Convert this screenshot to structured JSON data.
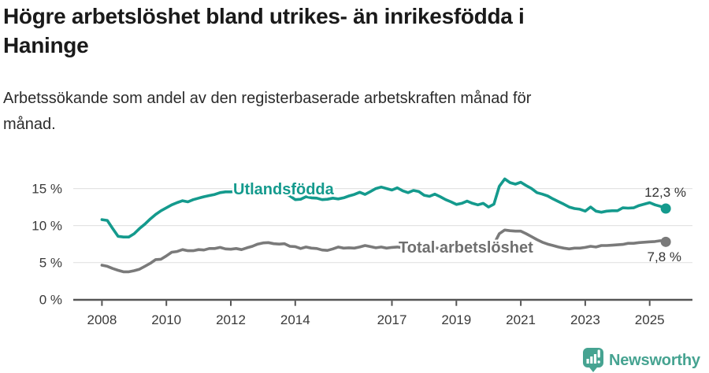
{
  "header": {
    "title": "Högre arbetslöshet bland utrikes- än inrikesfödda i\nHaninge",
    "subtitle": "Arbetssökande som andel av den registerbaserade arbetskraften månad för\nmånad."
  },
  "footer": {
    "brand": "Newsworthy"
  },
  "colors": {
    "teal": "#149a8d",
    "gray": "#7a7a7a",
    "gray_label": "#6f6f6f",
    "value_label": "#333333",
    "grid": "#e3e3e3",
    "axis": "#555555",
    "tick_label": "#3a3a3a",
    "logo": "#46a391",
    "background": "#ffffff"
  },
  "chart_data": {
    "type": "line",
    "title": "Högre arbetslöshet bland utrikes- än inrikesfödda i Haninge",
    "subtitle": "Arbetssökande som andel av den registerbaserade arbetskraften månad för månad.",
    "grid": "horizontal",
    "legend_position": "inline-labels",
    "x_axis": {
      "range": [
        2008.0,
        2025.5
      ],
      "ticks": [
        2008,
        2010,
        2012,
        2014,
        2017,
        2019,
        2021,
        2023,
        2025
      ],
      "tick_labels": [
        "2008",
        "2010",
        "2012",
        "2014",
        "2017",
        "2019",
        "2021",
        "2023",
        "2025"
      ]
    },
    "y_axis": {
      "unit": "%",
      "range": [
        0,
        17
      ],
      "ticks": [
        0,
        5,
        10,
        15
      ],
      "tick_labels": [
        "0 %",
        "5 %",
        "10 %",
        "15 %"
      ]
    },
    "x_start": 2008.0,
    "x_step": 0.166667,
    "sampling": "monthly share of workforce, values listed every second month",
    "series": [
      {
        "name": "Utlandsfödda",
        "color": "#149a8d",
        "end_label": "12,3 %",
        "end_value": 12.3,
        "values": [
          10.8,
          10.7,
          9.6,
          8.55,
          8.45,
          8.45,
          8.9,
          9.6,
          10.2,
          10.9,
          11.5,
          12.0,
          12.4,
          12.8,
          13.1,
          13.35,
          13.2,
          13.5,
          13.7,
          13.9,
          14.05,
          14.2,
          14.45,
          14.55,
          14.55,
          14.65,
          14.35,
          14.5,
          14.55,
          14.7,
          14.6,
          14.65,
          14.6,
          14.4,
          14.3,
          14.0,
          13.5,
          13.55,
          13.9,
          13.75,
          13.7,
          13.5,
          13.55,
          13.7,
          13.6,
          13.75,
          14.0,
          14.2,
          14.5,
          14.2,
          14.6,
          15.0,
          15.2,
          15.0,
          14.8,
          15.1,
          14.7,
          14.45,
          14.75,
          14.6,
          14.1,
          13.95,
          14.25,
          13.9,
          13.5,
          13.2,
          12.85,
          13.0,
          13.3,
          13.0,
          12.8,
          13.0,
          12.5,
          12.9,
          15.3,
          16.3,
          15.8,
          15.6,
          15.85,
          15.4,
          15.0,
          14.45,
          14.25,
          14.0,
          13.6,
          13.25,
          12.9,
          12.5,
          12.3,
          12.2,
          11.95,
          12.5,
          11.95,
          11.8,
          11.95,
          12.0,
          12.0,
          12.4,
          12.35,
          12.4,
          12.7,
          12.9,
          13.1,
          12.8,
          12.6,
          12.3
        ]
      },
      {
        "name": "Total arbetslöshet",
        "color": "#7a7a7a",
        "end_label": "7,8 %",
        "end_value": 7.8,
        "values": [
          4.65,
          4.5,
          4.2,
          3.95,
          3.75,
          3.75,
          3.9,
          4.1,
          4.5,
          4.9,
          5.4,
          5.45,
          5.9,
          6.4,
          6.5,
          6.75,
          6.6,
          6.6,
          6.75,
          6.7,
          6.9,
          6.9,
          7.05,
          6.85,
          6.8,
          6.9,
          6.75,
          7.0,
          7.2,
          7.5,
          7.65,
          7.7,
          7.55,
          7.5,
          7.55,
          7.2,
          7.15,
          6.9,
          7.1,
          6.95,
          6.9,
          6.7,
          6.65,
          6.85,
          7.1,
          6.95,
          7.0,
          6.95,
          7.1,
          7.3,
          7.15,
          7.0,
          7.1,
          6.95,
          7.05,
          7.1,
          7.0,
          7.1,
          7.15,
          7.05,
          7.0,
          6.95,
          7.0,
          6.9,
          6.85,
          6.8,
          6.75,
          6.8,
          6.9,
          6.85,
          6.9,
          7.0,
          7.0,
          7.5,
          8.9,
          9.4,
          9.3,
          9.25,
          9.25,
          8.9,
          8.5,
          8.1,
          7.75,
          7.5,
          7.3,
          7.1,
          6.95,
          6.85,
          6.95,
          6.95,
          7.05,
          7.2,
          7.1,
          7.3,
          7.3,
          7.35,
          7.4,
          7.45,
          7.6,
          7.6,
          7.7,
          7.75,
          7.8,
          7.85,
          7.95,
          7.8
        ]
      }
    ]
  }
}
